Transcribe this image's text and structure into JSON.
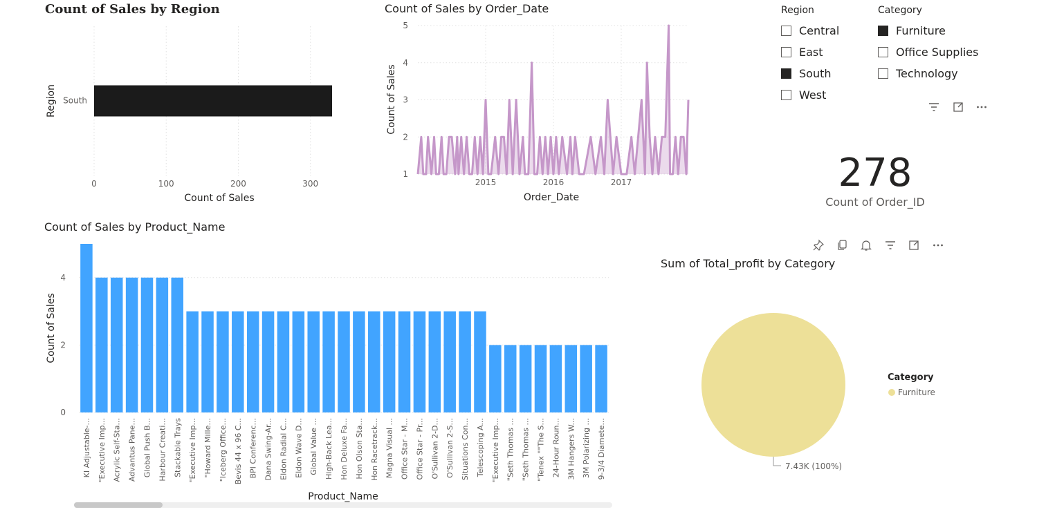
{
  "region_chart": {
    "title": "Count of Sales by Region",
    "xlabel": "Count of Sales",
    "ylabel": "Region",
    "categories": [
      "South"
    ],
    "values": [
      330
    ],
    "xticks": [
      "0",
      "100",
      "200",
      "300"
    ],
    "xlim": [
      0,
      330
    ],
    "bar_color": "#1b1b1b"
  },
  "date_chart": {
    "title": "Count of Sales by Order_Date",
    "xlabel": "Order_Date",
    "ylabel": "Count of Sales",
    "yticks": [
      "1",
      "2",
      "3",
      "4",
      "5"
    ],
    "xticks": [
      "2015",
      "2016",
      "2017"
    ],
    "ylim": [
      1,
      5
    ],
    "color": "#c597c9",
    "x": [
      2014.0,
      2014.05,
      2014.08,
      2014.12,
      2014.15,
      2014.2,
      2014.24,
      2014.27,
      2014.31,
      2014.35,
      2014.38,
      2014.42,
      2014.46,
      2014.5,
      2014.55,
      2014.58,
      2014.6,
      2014.64,
      2014.68,
      2014.72,
      2014.76,
      2014.8,
      2014.84,
      2014.88,
      2014.92,
      2014.96,
      2015.0,
      2015.04,
      2015.08,
      2015.14,
      2015.19,
      2015.23,
      2015.27,
      2015.31,
      2015.35,
      2015.4,
      2015.45,
      2015.5,
      2015.55,
      2015.58,
      2015.63,
      2015.68,
      2015.72,
      2015.76,
      2015.8,
      2015.84,
      2015.88,
      2015.92,
      2015.96,
      2016.0,
      2016.04,
      2016.08,
      2016.13,
      2016.2,
      2016.25,
      2016.28,
      2016.32,
      2016.38,
      2016.45,
      2016.55,
      2016.62,
      2016.7,
      2016.75,
      2016.8,
      2016.84,
      2016.88,
      2016.93,
      2017.0,
      2017.08,
      2017.15,
      2017.2,
      2017.25,
      2017.3,
      2017.35,
      2017.38,
      2017.42,
      2017.46,
      2017.5,
      2017.55,
      2017.6,
      2017.65,
      2017.7,
      2017.72,
      2017.76,
      2017.8,
      2017.84,
      2017.88,
      2017.92,
      2017.96,
      2017.99
    ],
    "y": [
      1,
      2,
      1,
      1,
      2,
      1,
      2,
      1,
      1,
      2,
      1,
      1,
      2,
      2,
      1,
      2,
      1,
      2,
      1,
      2,
      1,
      1,
      2,
      1,
      2,
      1,
      3,
      1,
      1,
      2,
      1,
      2,
      2,
      1,
      3,
      1,
      3,
      1,
      2,
      1,
      1,
      4,
      1,
      1,
      2,
      1,
      2,
      1,
      2,
      1,
      2,
      1,
      2,
      1,
      2,
      1,
      2,
      1,
      1,
      2,
      1,
      2,
      1,
      3,
      2,
      1,
      2,
      1,
      1,
      2,
      1,
      2,
      3,
      1,
      4,
      2,
      1,
      2,
      1,
      2,
      2,
      5,
      1,
      1,
      2,
      1,
      2,
      2,
      1,
      3
    ]
  },
  "slicers": {
    "region": {
      "title": "Region",
      "items": [
        {
          "label": "Central",
          "checked": false
        },
        {
          "label": "East",
          "checked": false
        },
        {
          "label": "South",
          "checked": true
        },
        {
          "label": "West",
          "checked": false
        }
      ]
    },
    "category": {
      "title": "Category",
      "items": [
        {
          "label": "Furniture",
          "checked": true
        },
        {
          "label": "Office Supplies",
          "checked": false
        },
        {
          "label": "Technology",
          "checked": false
        }
      ]
    }
  },
  "card": {
    "value": "278",
    "label": "Count of Order_ID"
  },
  "product_chart": {
    "title": "Count of Sales by Product_Name",
    "xlabel": "Product_Name",
    "ylabel": "Count of Sales",
    "yticks": [
      "0",
      "2",
      "4"
    ],
    "ylim": [
      0,
      5
    ],
    "bar_color": "#41a4ff",
    "categories": [
      "KI Adjustable-...",
      "\"Executive Imp...",
      "Acrylic Self-Sta...",
      "Advantus Pane...",
      "Global Push B...",
      "Harbour Creati...",
      "Stackable Trays",
      "\"Executive Imp...",
      "\"Howard Mille...",
      "\"Iceberg Office...",
      "Bevis 44 x 96 C...",
      "BPI Conferenc...",
      "Dana Swing-Ar...",
      "Eldon Radial C...",
      "Eldon Wave D...",
      "Global Value ...",
      "High-Back Lea...",
      "Hon Deluxe Fa...",
      "Hon Olson Sta...",
      "Hon Racetrack...",
      "Magna Visual ...",
      "Office Star - M...",
      "Office Star - Pr...",
      "O'Sullivan 2-D...",
      "O'Sullivan 2-S...",
      "Situations Con...",
      "Telescoping A...",
      "\"Executive Imp...",
      "\"Seth Thomas ...",
      "\"Seth Thomas ...",
      "\"Tenex \"\"The S...",
      "24-Hour Roun...",
      "3M Hangers W...",
      "3M Polarizing ...",
      "9-3/4 Diamete..."
    ],
    "values": [
      5,
      4,
      4,
      4,
      4,
      4,
      4,
      3,
      3,
      3,
      3,
      3,
      3,
      3,
      3,
      3,
      3,
      3,
      3,
      3,
      3,
      3,
      3,
      3,
      3,
      3,
      3,
      2,
      2,
      2,
      2,
      2,
      2,
      2,
      2
    ]
  },
  "pie_chart": {
    "title": "Sum of Total_profit by Category",
    "legend_title": "Category",
    "legend_items": [
      "Furniture"
    ],
    "slices": [
      {
        "label": "Furniture",
        "value": 7430,
        "percent": 100,
        "color": "#ede098"
      }
    ],
    "data_label": "7.43K (100%)"
  }
}
